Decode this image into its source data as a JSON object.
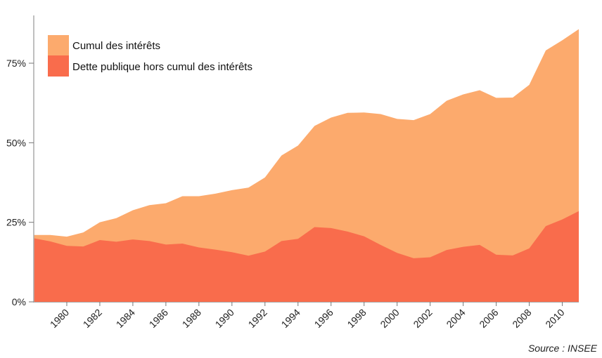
{
  "chart_data": {
    "type": "area",
    "stacked": true,
    "title": "",
    "xlabel": "",
    "ylabel": "",
    "x": [
      1978,
      1979,
      1980,
      1981,
      1982,
      1983,
      1984,
      1985,
      1986,
      1987,
      1988,
      1989,
      1990,
      1991,
      1992,
      1993,
      1994,
      1995,
      1996,
      1997,
      1998,
      1999,
      2000,
      2001,
      2002,
      2003,
      2004,
      2005,
      2006,
      2007,
      2008,
      2009,
      2010,
      2011
    ],
    "xlim": [
      1978,
      2011
    ],
    "xticks": [
      "1980",
      "1982",
      "1984",
      "1986",
      "1988",
      "1990",
      "1992",
      "1994",
      "1996",
      "1998",
      "2000",
      "2002",
      "2004",
      "2006",
      "2008",
      "2010"
    ],
    "ylim": [
      0,
      90
    ],
    "yticks": [
      {
        "value": 0,
        "label": "0%"
      },
      {
        "value": 25,
        "label": "25%"
      },
      {
        "value": 50,
        "label": "50%"
      },
      {
        "value": 75,
        "label": "75%"
      }
    ],
    "grid": false,
    "legend_position": "top-left",
    "series": [
      {
        "name": "Dette publique hors cumul des intérêts",
        "color": "#F96C4C",
        "values": [
          20.0,
          19.0,
          17.6,
          17.4,
          19.4,
          18.9,
          19.6,
          19.1,
          18.0,
          18.3,
          17.1,
          16.4,
          15.6,
          14.5,
          15.8,
          19.1,
          19.8,
          23.5,
          23.2,
          22.1,
          20.6,
          17.9,
          15.4,
          13.7,
          14.0,
          16.3,
          17.3,
          17.9,
          14.8,
          14.6,
          16.8,
          23.8,
          25.9,
          28.5
        ]
      },
      {
        "name": "Cumul des intérêts",
        "color": "#FCAA6D",
        "total_values": [
          21.0,
          21.0,
          20.5,
          21.8,
          25.0,
          26.3,
          28.8,
          30.4,
          31.0,
          33.2,
          33.2,
          34.0,
          35.1,
          35.9,
          39.1,
          46.0,
          49.1,
          55.3,
          57.9,
          59.4,
          59.5,
          59.0,
          57.5,
          57.1,
          59.0,
          63.2,
          65.2,
          66.5,
          64.1,
          64.2,
          68.2,
          79.0,
          82.2,
          85.7
        ]
      }
    ]
  },
  "source": "Source : INSEE"
}
